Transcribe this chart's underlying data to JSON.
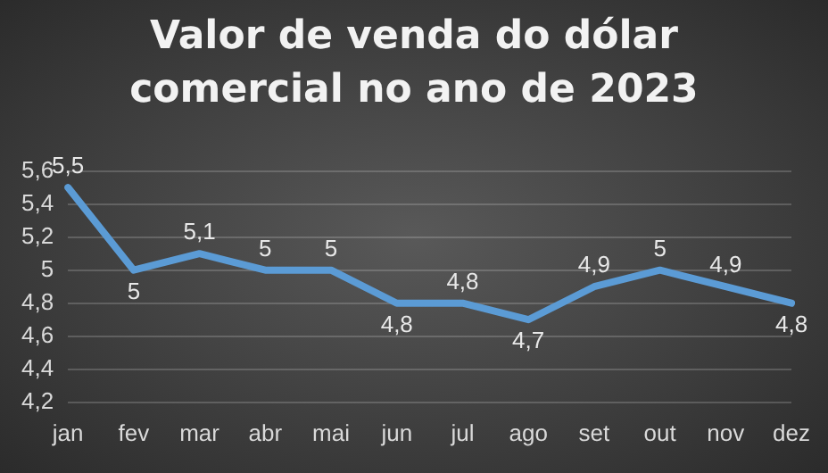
{
  "chart_data": {
    "type": "line",
    "title": "Valor de venda do dólar comercial no ano de 2023",
    "categories": [
      "jan",
      "fev",
      "mar",
      "abr",
      "mai",
      "jun",
      "jul",
      "ago",
      "set",
      "out",
      "nov",
      "dez"
    ],
    "values": [
      5.5,
      5.0,
      5.1,
      5.0,
      5.0,
      4.8,
      4.8,
      4.7,
      4.9,
      5.0,
      4.9,
      4.8
    ],
    "value_labels": [
      "5,5",
      "5",
      "5,1",
      "5",
      "5",
      "4,8",
      "4,8",
      "4,7",
      "4,9",
      "5",
      "4,9",
      "4,8"
    ],
    "color": "#5b9bd5",
    "ylim": [
      4.2,
      5.6
    ],
    "yticks": [
      {
        "value": 4.2,
        "label": "4,2"
      },
      {
        "value": 4.4,
        "label": "4,4"
      },
      {
        "value": 4.6,
        "label": "4,6"
      },
      {
        "value": 4.8,
        "label": "4,8"
      },
      {
        "value": 5,
        "label": "5"
      },
      {
        "value": 5.2,
        "label": "5,2"
      },
      {
        "value": 5.4,
        "label": "5,4"
      },
      {
        "value": 5.6,
        "label": "5,6"
      }
    ],
    "grid": "y",
    "legend": false,
    "marker": "none",
    "line_style": "solid"
  }
}
